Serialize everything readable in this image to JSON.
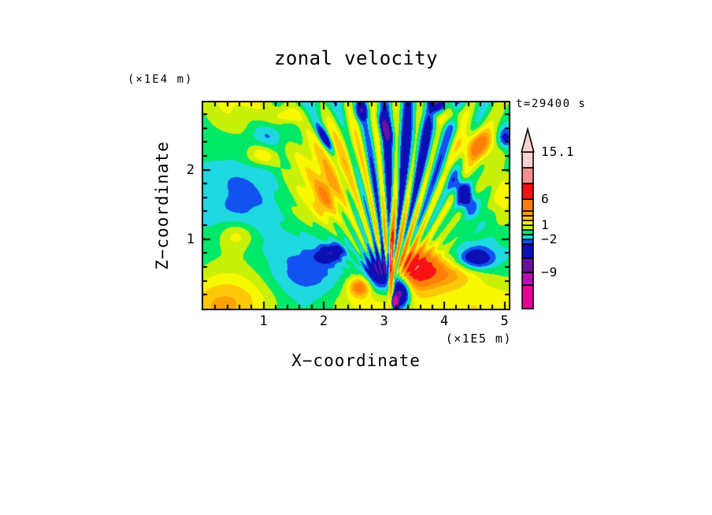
{
  "style": {
    "background": "#ffffff",
    "ink": "#000000"
  },
  "chart_data": {
    "type": "filled_contour",
    "title": "zonal velocity",
    "timestamp": "t=29400 s",
    "x_axis": {
      "label": "X−coordinate",
      "unit": "(×1E5 m)",
      "tick_labels": [
        "1",
        "2",
        "3",
        "4",
        "5"
      ],
      "tick_values": [
        1,
        2,
        3,
        4,
        5
      ],
      "minor_step": 0.2,
      "range": [
        0,
        5.07
      ],
      "grid": false
    },
    "y_axis": {
      "label": "Z−coordinate",
      "unit": "(×1E4 m)",
      "tick_labels": [
        "1",
        "2"
      ],
      "tick_values": [
        1,
        2
      ],
      "minor_step": 0.2,
      "range": [
        0,
        2.97
      ],
      "grid": false
    },
    "colorbar": {
      "orientation": "vertical",
      "arrow_top": true,
      "max_value": 15.1,
      "levels": [
        -12,
        -9,
        -6,
        -3,
        -2,
        -1,
        0,
        1,
        2,
        3,
        4,
        6,
        9,
        12
      ],
      "colors": [
        "#e6009b",
        "#b412b4",
        "#6a10a0",
        "#0a10b4",
        "#1252f0",
        "#20d8e0",
        "#00e868",
        "#c8f008",
        "#f8f800",
        "#ffc808",
        "#ffa008",
        "#ff8008",
        "#f61212",
        "#f89090",
        "#fbd2d2"
      ],
      "segment_heights": [
        30,
        16,
        18,
        18,
        6,
        6,
        6,
        6,
        6,
        6,
        6,
        15,
        20,
        20,
        20
      ],
      "labels": [
        {
          "text": "15.1",
          "value": 15.1
        },
        {
          "text": "6",
          "value": 6
        },
        {
          "text": "1",
          "value": 1
        },
        {
          "text": "−2",
          "value": -2
        },
        {
          "text": "−9",
          "value": -9
        }
      ]
    },
    "field_model": {
      "comment": "approximate reconstruction of the plotted zonal-velocity field (m/s)",
      "base": -0.5,
      "waves": [
        {
          "amp": 1.15,
          "a": [
            2.3,
            0.0,
            0.4
          ],
          "b": [
            0.0,
            2.0,
            0.8
          ]
        },
        {
          "amp": 0.95,
          "a": [
            1.25,
            1.6,
            2.1
          ]
        },
        {
          "amp": 0.8,
          "a": [
            3.0,
            -1.2,
            0.5
          ],
          "b": [
            0.0,
            1.3,
            1.9
          ]
        }
      ],
      "fan": {
        "x": 3.05,
        "z": 0.1,
        "n": 46,
        "curve": 1.2,
        "phase": 0.4,
        "amp": 3.2,
        "r_on": 0.25,
        "r_on_width": 0.4,
        "r_decay": 4.0,
        "theta_sigma": 0.62,
        "mod_amp": 0.35,
        "mod_n": 3,
        "mod_phase": 0.5
      },
      "bottom_band": {
        "z0": 0.08,
        "sigma": 0.33,
        "amp": 1.7
      },
      "gaussians": [
        {
          "x": 2.95,
          "z": 0.55,
          "sx": 0.28,
          "sz": 0.3,
          "amp": -7.5,
          "rot": 0
        },
        {
          "x": 3.28,
          "z": 0.22,
          "sx": 0.15,
          "sz": 0.22,
          "amp": -8.0,
          "rot": 0
        },
        {
          "x": 3.55,
          "z": 0.6,
          "sx": 0.35,
          "sz": 0.26,
          "amp": 6.5,
          "rot": 0
        },
        {
          "x": 3.12,
          "z": 0.6,
          "sx": 0.045,
          "sz": 0.55,
          "amp": 9.0,
          "rot": 0
        },
        {
          "x": 2.6,
          "z": 0.32,
          "sx": 0.18,
          "sz": 0.14,
          "amp": 5.0,
          "rot": 0
        },
        {
          "x": 3.18,
          "z": 0.1,
          "sx": 0.05,
          "sz": 0.09,
          "amp": -15.0,
          "rot": 0
        },
        {
          "x": 4.05,
          "z": 0.5,
          "sx": 0.55,
          "sz": 0.2,
          "amp": 3.2,
          "rot": 0
        },
        {
          "x": 2.12,
          "z": 0.8,
          "sx": 0.22,
          "sz": 0.12,
          "amp": -4.4,
          "rot": 10
        },
        {
          "x": 4.52,
          "z": 0.72,
          "sx": 0.3,
          "sz": 0.16,
          "amp": -4.2,
          "rot": 0
        },
        {
          "x": 0.55,
          "z": 1.05,
          "sx": 0.3,
          "sz": 0.2,
          "amp": 2.4,
          "rot": 0
        },
        {
          "x": 4.32,
          "z": 1.65,
          "sx": 0.14,
          "sz": 0.28,
          "amp": -5.0,
          "rot": 30
        },
        {
          "x": 2.02,
          "z": 2.45,
          "sx": 0.07,
          "sz": 0.22,
          "amp": -5.5,
          "rot": 35
        },
        {
          "x": 3.93,
          "z": 2.92,
          "sx": 0.12,
          "sz": 0.18,
          "amp": -6.0,
          "rot": 20
        },
        {
          "x": 3.02,
          "z": 2.6,
          "sx": 0.08,
          "sz": 0.2,
          "amp": -4.5,
          "rot": 25
        },
        {
          "x": 5.02,
          "z": 2.45,
          "sx": 0.12,
          "sz": 0.15,
          "amp": -3.5,
          "rot": 0
        },
        {
          "x": 2.62,
          "z": 2.85,
          "sx": 0.1,
          "sz": 0.12,
          "amp": -4.0,
          "rot": 0
        },
        {
          "x": 4.55,
          "z": 2.35,
          "sx": 0.3,
          "sz": 0.2,
          "amp": 4.5,
          "rot": 20
        },
        {
          "x": 4.02,
          "z": 2.8,
          "sx": 0.25,
          "sz": 0.14,
          "amp": 4.0,
          "rot": 0
        },
        {
          "x": 5.0,
          "z": 1.6,
          "sx": 0.22,
          "sz": 0.45,
          "amp": 3.0,
          "rot": 0
        },
        {
          "x": 0.95,
          "z": 2.2,
          "sx": 0.28,
          "sz": 0.16,
          "amp": 2.6,
          "rot": 0
        },
        {
          "x": 1.4,
          "z": 2.78,
          "sx": 0.22,
          "sz": 0.12,
          "amp": 2.4,
          "rot": 0
        },
        {
          "x": 2.02,
          "z": 1.6,
          "sx": 0.18,
          "sz": 0.3,
          "amp": 2.5,
          "rot": 0
        },
        {
          "x": 1.1,
          "z": 2.5,
          "sx": 0.35,
          "sz": 0.18,
          "amp": -1.6,
          "rot": 0
        }
      ]
    }
  }
}
